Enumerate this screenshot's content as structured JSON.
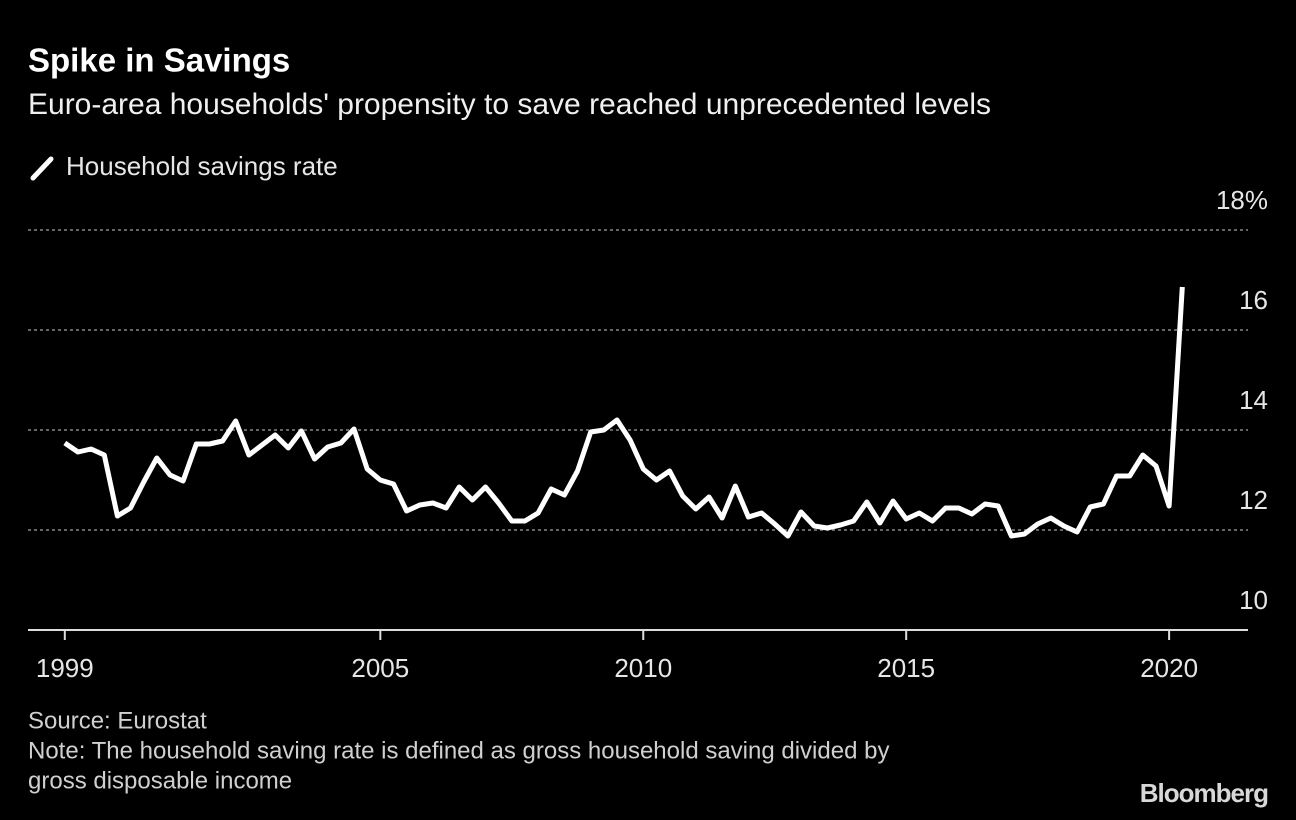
{
  "chart_data": {
    "type": "line",
    "title": "Spike in Savings",
    "subtitle": "Euro-area households' propensity to save reached unprecedented levels",
    "source": "Source: Eurostat",
    "note": [
      "Note: The household saving rate is defined as gross household saving divided by",
      "gross disposable income"
    ],
    "logo": "Bloomberg",
    "x": [
      1999,
      1999.25,
      1999.5,
      1999.75,
      2000,
      2000.25,
      2000.5,
      2000.75,
      2001,
      2001.25,
      2001.5,
      2001.75,
      2002,
      2002.25,
      2002.5,
      2002.75,
      2003,
      2003.25,
      2003.5,
      2003.75,
      2004,
      2004.25,
      2004.5,
      2004.75,
      2005,
      2005.25,
      2005.5,
      2005.75,
      2006,
      2006.25,
      2006.5,
      2006.75,
      2007,
      2007.25,
      2007.5,
      2007.75,
      2008,
      2008.25,
      2008.5,
      2008.75,
      2009,
      2009.25,
      2009.5,
      2009.75,
      2010,
      2010.25,
      2010.5,
      2010.75,
      2011,
      2011.25,
      2011.5,
      2011.75,
      2012,
      2012.25,
      2012.5,
      2012.75,
      2013,
      2013.25,
      2013.5,
      2013.75,
      2014,
      2014.25,
      2014.5,
      2014.75,
      2015,
      2015.25,
      2015.5,
      2015.75,
      2016,
      2016.25,
      2016.5,
      2016.75,
      2017,
      2017.25,
      2017.5,
      2017.75,
      2018,
      2018.25,
      2018.5,
      2018.75,
      2019,
      2019.25,
      2019.5,
      2019.75,
      2020,
      2020.25
    ],
    "series": [
      {
        "name": "Household savings rate",
        "color": "#ffffff",
        "values": [
          13.74,
          13.56,
          13.62,
          13.5,
          12.28,
          12.44,
          12.96,
          13.44,
          13.1,
          12.98,
          13.72,
          13.72,
          13.78,
          14.18,
          13.5,
          13.7,
          13.9,
          13.64,
          13.98,
          13.42,
          13.66,
          13.74,
          14.02,
          13.22,
          13.0,
          12.92,
          12.38,
          12.5,
          12.54,
          12.44,
          12.86,
          12.6,
          12.86,
          12.54,
          12.18,
          12.18,
          12.34,
          12.82,
          12.7,
          13.18,
          13.96,
          14.0,
          14.2,
          13.8,
          13.22,
          13.0,
          13.18,
          12.68,
          12.42,
          12.66,
          12.24,
          12.88,
          12.26,
          12.34,
          12.12,
          11.88,
          12.36,
          12.08,
          12.04,
          12.1,
          12.18,
          12.56,
          12.14,
          12.58,
          12.22,
          12.34,
          12.18,
          12.44,
          12.44,
          12.32,
          12.52,
          12.48,
          11.88,
          11.92,
          12.12,
          12.24,
          12.08,
          11.96,
          12.46,
          12.52,
          13.08,
          13.08,
          13.5,
          13.28,
          12.48,
          16.86
        ]
      }
    ],
    "xlim": [
      1998.3,
      2021.5
    ],
    "xticks": [
      1999,
      2005,
      2010,
      2015,
      2020
    ],
    "ylim": [
      10,
      18
    ],
    "yticks": [
      10,
      12,
      14,
      16,
      {
        "value": 18,
        "label": "18%"
      }
    ],
    "grid": true
  }
}
